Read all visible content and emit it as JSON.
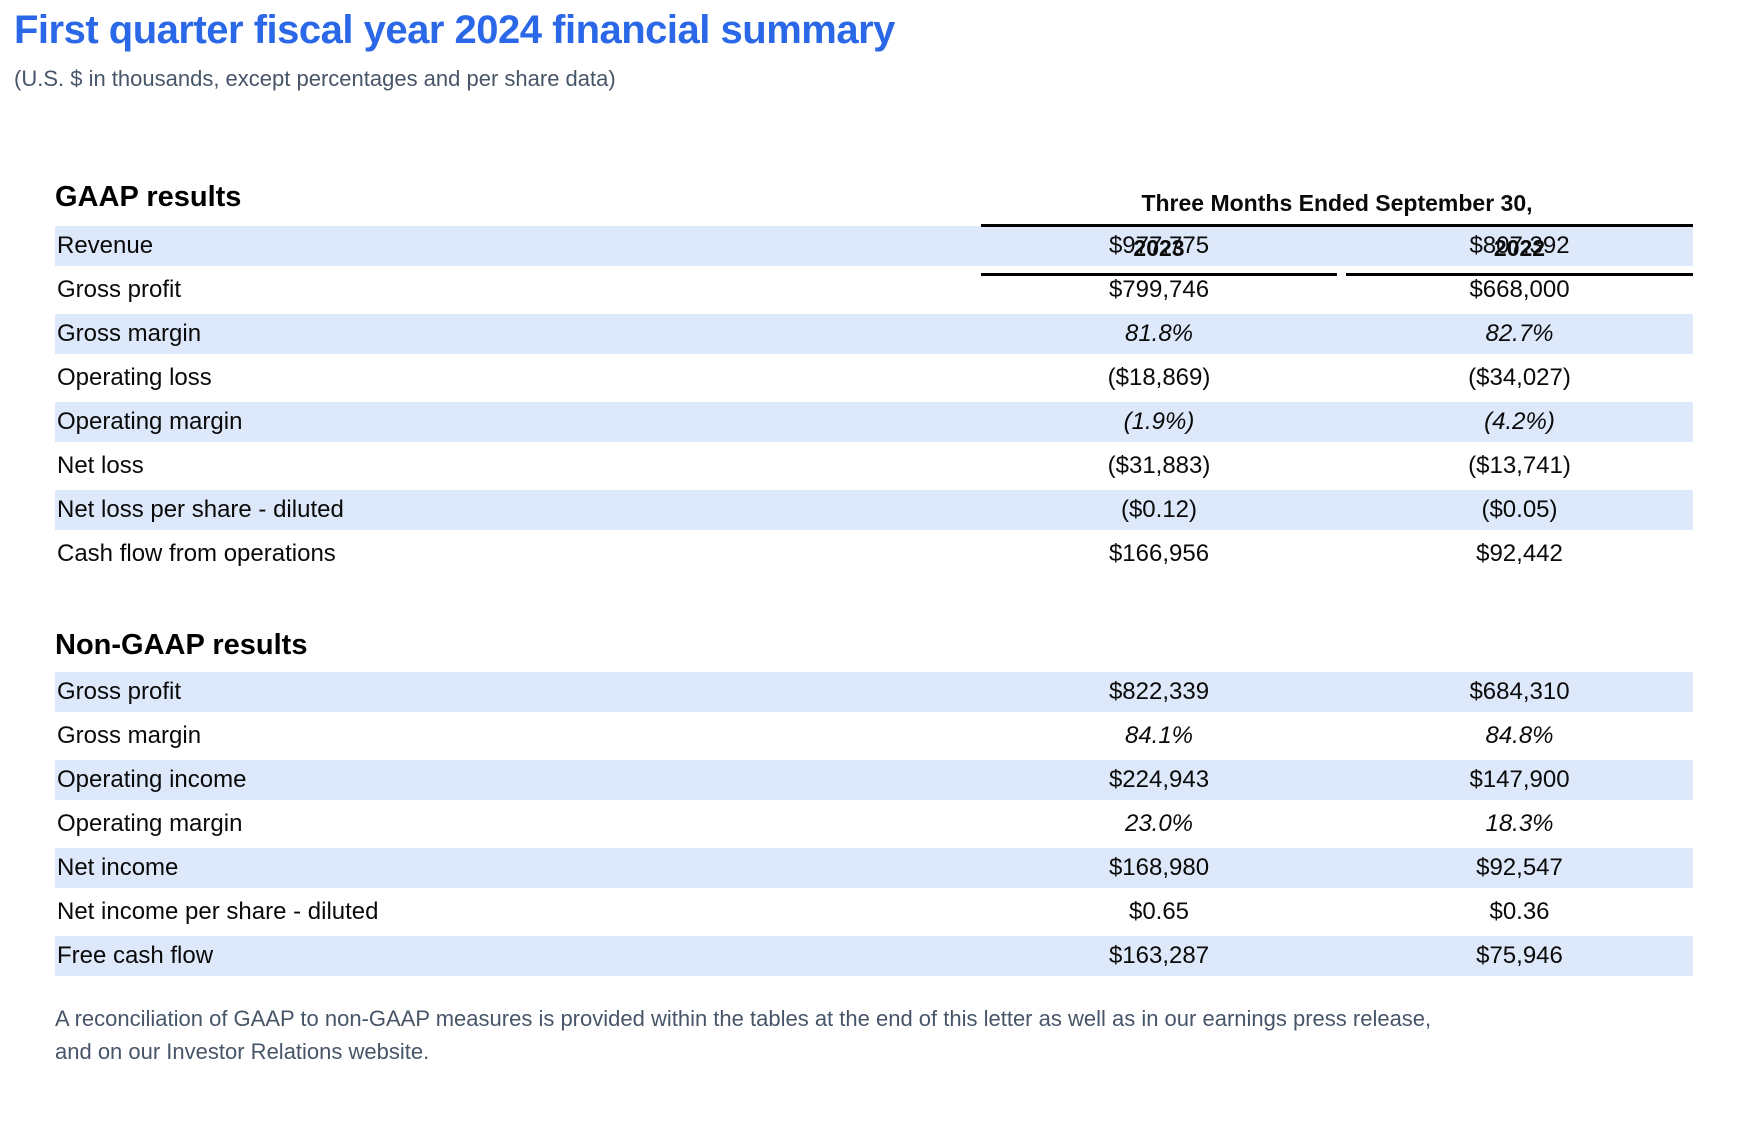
{
  "page": {
    "title": "First quarter fiscal year 2024 financial summary",
    "subtitle": "(U.S. $ in thousands, except percentages and per share data)",
    "footnote": "A reconciliation of GAAP to non-GAAP measures is provided within the tables at the end of this letter as well as in our earnings press release, and on our Investor Relations website."
  },
  "colors": {
    "title_blue": "#2A68E8",
    "row_stripe_blue": "#DDE8FA",
    "muted_slate_text": "#475569",
    "table_text": "#0A0A0A",
    "rule_black": "#000000"
  },
  "table": {
    "period_header": "Three Months Ended September 30,",
    "columns": [
      "2023",
      "2022"
    ],
    "sections": [
      {
        "heading": "GAAP results",
        "rows": [
          {
            "label": "Revenue",
            "y2023": "$977,775",
            "y2022": "$807,392",
            "italic": false
          },
          {
            "label": "Gross profit",
            "y2023": "$799,746",
            "y2022": "$668,000",
            "italic": false
          },
          {
            "label": "Gross margin",
            "y2023": "81.8%",
            "y2022": "82.7%",
            "italic": true
          },
          {
            "label": "Operating loss",
            "y2023": "($18,869)",
            "y2022": "($34,027)",
            "italic": false
          },
          {
            "label": "Operating margin",
            "y2023": "(1.9%)",
            "y2022": "(4.2%)",
            "italic": true
          },
          {
            "label": "Net loss",
            "y2023": "($31,883)",
            "y2022": "($13,741)",
            "italic": false
          },
          {
            "label": "Net loss per share - diluted",
            "y2023": "($0.12)",
            "y2022": "($0.05)",
            "italic": false
          },
          {
            "label": "Cash flow from operations",
            "y2023": "$166,956",
            "y2022": "$92,442",
            "italic": false
          }
        ]
      },
      {
        "heading": "Non-GAAP results",
        "rows": [
          {
            "label": "Gross profit",
            "y2023": "$822,339",
            "y2022": "$684,310",
            "italic": false
          },
          {
            "label": "Gross margin",
            "y2023": "84.1%",
            "y2022": "84.8%",
            "italic": true
          },
          {
            "label": "Operating income",
            "y2023": "$224,943",
            "y2022": "$147,900",
            "italic": false
          },
          {
            "label": "Operating margin",
            "y2023": "23.0%",
            "y2022": "18.3%",
            "italic": true
          },
          {
            "label": "Net income",
            "y2023": "$168,980",
            "y2022": "$92,547",
            "italic": false
          },
          {
            "label": "Net income per share - diluted",
            "y2023": "$0.65",
            "y2022": "$0.36",
            "italic": false
          },
          {
            "label": "Free cash flow",
            "y2023": "$163,287",
            "y2022": "$75,946",
            "italic": false
          }
        ]
      }
    ]
  }
}
